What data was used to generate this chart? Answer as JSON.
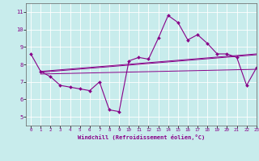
{
  "xlabel": "Windchill (Refroidissement éolien,°C)",
  "xlim": [
    -0.5,
    23
  ],
  "ylim": [
    4.5,
    11.5
  ],
  "yticks": [
    5,
    6,
    7,
    8,
    9,
    10,
    11
  ],
  "xticks": [
    0,
    1,
    2,
    3,
    4,
    5,
    6,
    7,
    8,
    9,
    10,
    11,
    12,
    13,
    14,
    15,
    16,
    17,
    18,
    19,
    20,
    21,
    22,
    23
  ],
  "bg_color": "#c8ecec",
  "line_color": "#880088",
  "grid_color": "#ffffff",
  "series1_x": [
    0,
    1,
    2,
    3,
    4,
    5,
    6,
    7,
    8,
    9,
    10,
    11,
    12,
    13,
    14,
    15,
    16,
    17,
    18,
    19,
    20,
    21,
    22,
    23
  ],
  "series1_y": [
    8.6,
    7.6,
    7.3,
    6.8,
    6.7,
    6.6,
    6.5,
    7.0,
    5.4,
    5.3,
    8.2,
    8.4,
    8.3,
    9.5,
    10.8,
    10.4,
    9.4,
    9.7,
    9.2,
    8.6,
    8.6,
    8.4,
    6.8,
    7.8
  ],
  "series2_x": [
    1,
    23
  ],
  "series2_y": [
    7.6,
    8.6
  ],
  "series3_x": [
    1,
    23
  ],
  "series3_y": [
    7.55,
    8.55
  ],
  "series4_x": [
    1,
    23
  ],
  "series4_y": [
    7.45,
    7.72
  ]
}
